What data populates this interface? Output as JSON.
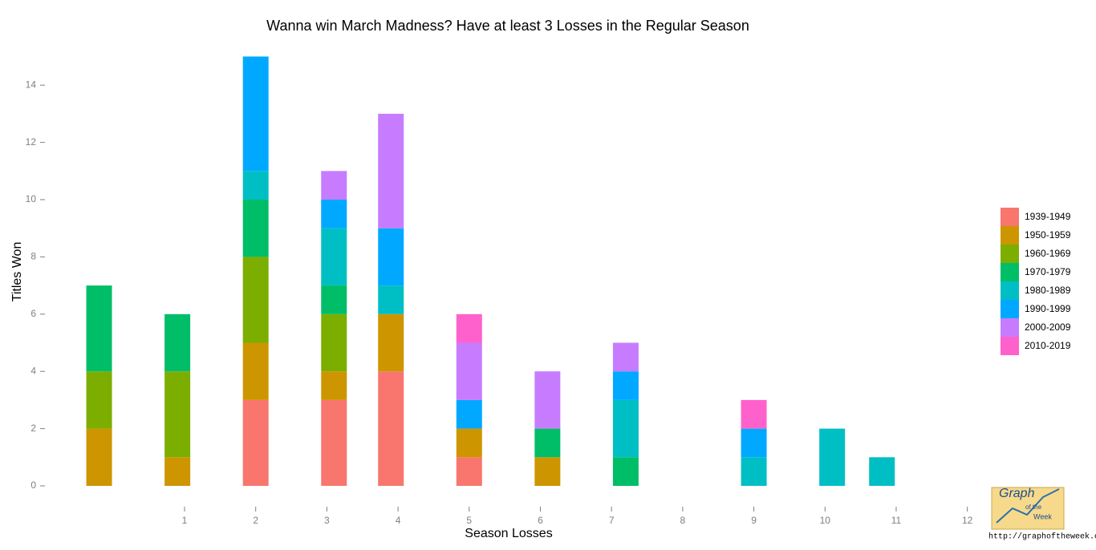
{
  "chart_data": {
    "type": "stacked-bar",
    "title": "Wanna win March Madness?  Have at least 3 Losses in the Regular Season",
    "x_label": "Season Losses",
    "y_label": "Titles Won",
    "x": [
      -0.2,
      0.9,
      2.0,
      3.1,
      3.9,
      5.0,
      6.1,
      7.2,
      9.0,
      10.1,
      10.8
    ],
    "series": [
      {
        "name": "1939-1949",
        "color": "#f8766d",
        "values": [
          0,
          0,
          3,
          3,
          4,
          1,
          0,
          0,
          0,
          0,
          0
        ]
      },
      {
        "name": "1950-1959",
        "color": "#cd9600",
        "values": [
          2,
          1,
          2,
          1,
          2,
          1,
          1,
          0,
          0,
          0,
          0
        ]
      },
      {
        "name": "1960-1969",
        "color": "#7cae00",
        "values": [
          2,
          3,
          3,
          2,
          0,
          0,
          0,
          0,
          0,
          0,
          0
        ]
      },
      {
        "name": "1970-1979",
        "color": "#00be67",
        "values": [
          3,
          2,
          2,
          1,
          0,
          0,
          1,
          1,
          0,
          0,
          0
        ]
      },
      {
        "name": "1980-1989",
        "color": "#00bfc4",
        "values": [
          0,
          0,
          1,
          2,
          1,
          0,
          0,
          2,
          1,
          2,
          1
        ]
      },
      {
        "name": "1990-1999",
        "color": "#00a9ff",
        "values": [
          0,
          0,
          4,
          1,
          2,
          1,
          0,
          1,
          1,
          0,
          0
        ]
      },
      {
        "name": "2000-2009",
        "color": "#c77cff",
        "values": [
          0,
          0,
          0,
          1,
          4,
          2,
          2,
          1,
          0,
          0,
          0
        ]
      },
      {
        "name": "2010-2019",
        "color": "#ff61cc",
        "values": [
          0,
          0,
          0,
          0,
          0,
          1,
          0,
          0,
          1,
          0,
          0
        ]
      }
    ],
    "xlim": [
      -1,
      12.5
    ],
    "xticks": [
      1,
      2,
      3,
      4,
      5,
      6,
      7,
      8,
      9,
      10,
      11,
      12
    ],
    "ylim": [
      0,
      15
    ],
    "yticks": [
      0,
      2,
      4,
      6,
      8,
      10,
      12,
      14
    ],
    "legend": "right"
  },
  "logo": {
    "title": "Graph",
    "sub1": "of the",
    "sub2": "Week",
    "url": "http://graphoftheweek.org/"
  }
}
